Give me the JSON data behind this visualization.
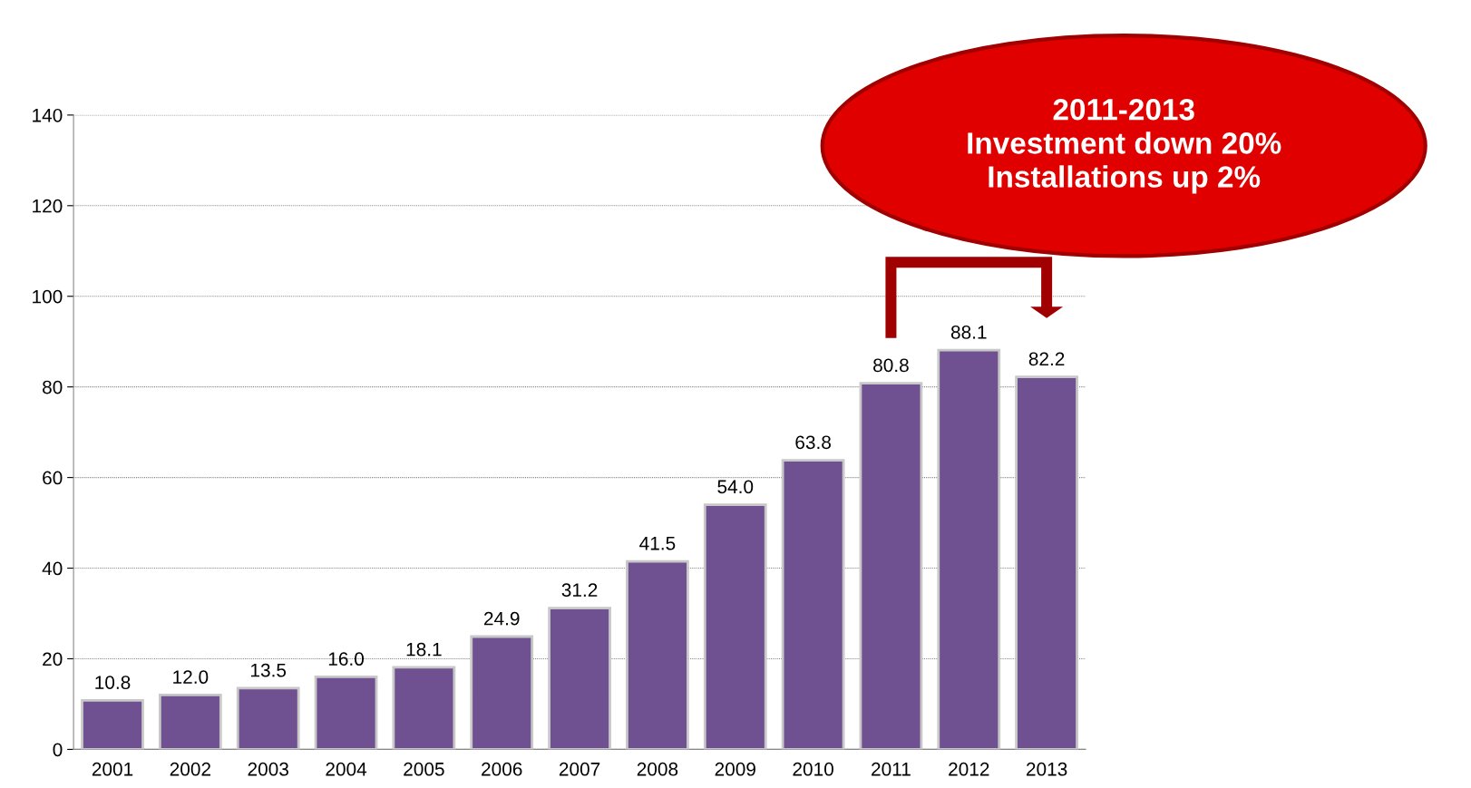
{
  "chart_data": {
    "type": "bar",
    "categories": [
      "2001",
      "2002",
      "2003",
      "2004",
      "2005",
      "2006",
      "2007",
      "2008",
      "2009",
      "2010",
      "2011",
      "2012",
      "2013"
    ],
    "values": [
      10.8,
      12.0,
      13.5,
      16.0,
      18.1,
      24.9,
      31.2,
      41.5,
      54.0,
      63.8,
      80.8,
      88.1,
      82.2
    ],
    "value_labels": [
      "10.8",
      "12.0",
      "13.5",
      "16.0",
      "18.1",
      "24.9",
      "31.2",
      "41.5",
      "54.0",
      "63.8",
      "80.8",
      "88.1",
      "82.2"
    ],
    "color": "#6f5090",
    "ylim": [
      0,
      140
    ],
    "yticks": [
      0,
      20,
      40,
      60,
      80,
      100,
      120,
      140
    ],
    "grid": "y",
    "annotations": [
      "2011-2013\nInvestment down 20%\nInstallations up 2%"
    ]
  }
}
